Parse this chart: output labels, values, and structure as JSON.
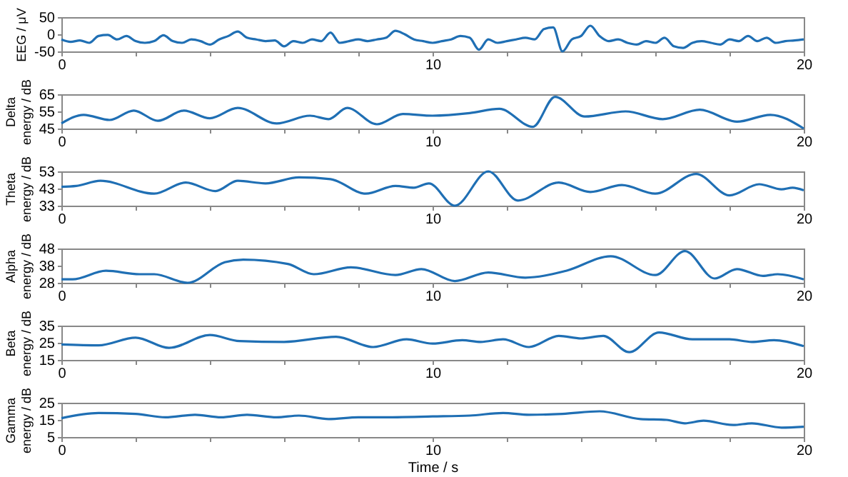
{
  "chart_data": [
    {
      "type": "line",
      "ylabel": "EEG / μV",
      "xlim": [
        0,
        20
      ],
      "xticks": [
        0,
        {
          "value": 2,
          "label": null
        },
        {
          "value": 4,
          "label": null
        },
        {
          "value": 6,
          "label": null
        },
        {
          "value": 8,
          "label": null
        },
        10,
        {
          "value": 12,
          "label": null
        },
        {
          "value": 14,
          "label": null
        },
        {
          "value": 16,
          "label": null
        },
        {
          "value": 18,
          "label": null
        },
        20
      ],
      "ylim": [
        -50,
        50
      ],
      "yticks": [
        -50,
        0,
        50
      ],
      "x": [
        0,
        0.25,
        0.5,
        0.75,
        1,
        1.25,
        1.5,
        1.75,
        2,
        2.25,
        2.5,
        2.75,
        3,
        3.25,
        3.5,
        3.75,
        4,
        4.25,
        4.5,
        4.75,
        5,
        5.25,
        5.5,
        5.75,
        6,
        6.25,
        6.5,
        6.75,
        7,
        7.25,
        7.5,
        7.75,
        8,
        8.25,
        8.5,
        8.75,
        9,
        9.25,
        9.5,
        9.75,
        10,
        10.25,
        10.5,
        10.75,
        11,
        11.25,
        11.5,
        11.75,
        12,
        12.25,
        12.5,
        12.75,
        13,
        13.25,
        13.5,
        13.75,
        14,
        14.25,
        14.5,
        14.75,
        15,
        15.25,
        15.5,
        15.75,
        16,
        16.25,
        16.5,
        16.75,
        17,
        17.25,
        17.5,
        17.75,
        18,
        18.25,
        18.5,
        18.75,
        19,
        19.25,
        19.5,
        19.75,
        20
      ],
      "series": [
        {
          "color": "#1f6fb4",
          "values": [
            -15,
            -22,
            -18,
            -25,
            -5,
            -2,
            -15,
            -5,
            -20,
            -25,
            -20,
            -3,
            -20,
            -25,
            -15,
            -20,
            -30,
            -15,
            -5,
            8,
            -10,
            -15,
            -20,
            -18,
            -35,
            -20,
            -25,
            -15,
            -20,
            5,
            -25,
            -20,
            -15,
            -20,
            -15,
            -10,
            10,
            0,
            -15,
            -20,
            -25,
            -20,
            -15,
            -5,
            -10,
            -45,
            -15,
            -25,
            -20,
            -15,
            -10,
            -15,
            15,
            20,
            -50,
            -15,
            -5,
            25,
            -5,
            -20,
            -15,
            -25,
            -30,
            -20,
            -25,
            -10,
            -35,
            -40,
            -25,
            -20,
            -25,
            -30,
            -15,
            -20,
            -5,
            -20,
            -10,
            -25,
            -20,
            -18,
            -15
          ]
        }
      ]
    },
    {
      "type": "line",
      "ylabel": "Delta\nenergy / dB",
      "xlim": [
        0,
        20
      ],
      "xticks": [
        0,
        {
          "value": 2,
          "label": null
        },
        {
          "value": 4,
          "label": null
        },
        {
          "value": 6,
          "label": null
        },
        {
          "value": 8,
          "label": null
        },
        10,
        {
          "value": 12,
          "label": null
        },
        {
          "value": 14,
          "label": null
        },
        {
          "value": 16,
          "label": null
        },
        {
          "value": 18,
          "label": null
        },
        20
      ],
      "ylim": [
        45,
        65
      ],
      "yticks": [
        45,
        55,
        65
      ],
      "x": [
        0,
        0.6,
        1.3,
        1.95,
        2.6,
        3.3,
        4.0,
        4.75,
        5.8,
        6.7,
        7.2,
        7.7,
        8.5,
        9.2,
        10.0,
        11.0,
        11.8,
        12.7,
        13.3,
        14.1,
        15.2,
        16.2,
        17.2,
        18.2,
        19.1,
        20
      ],
      "series": [
        {
          "color": "#1f6fb4",
          "values": [
            48,
            53,
            50,
            55.5,
            49.5,
            55.5,
            51,
            57,
            48,
            52.5,
            50.5,
            57,
            47.5,
            53.5,
            52.5,
            54,
            56.5,
            46,
            63.5,
            52,
            55,
            50.5,
            56,
            49,
            53,
            45
          ]
        }
      ]
    },
    {
      "type": "line",
      "ylabel": "Theta\nenergy / dB",
      "xlim": [
        0,
        20
      ],
      "xticks": [
        0,
        {
          "value": 2,
          "label": null
        },
        {
          "value": 4,
          "label": null
        },
        {
          "value": 6,
          "label": null
        },
        {
          "value": 8,
          "label": null
        },
        10,
        {
          "value": 12,
          "label": null
        },
        {
          "value": 14,
          "label": null
        },
        {
          "value": 16,
          "label": null
        },
        {
          "value": 18,
          "label": null
        },
        20
      ],
      "ylim": [
        33,
        53
      ],
      "yticks": [
        33,
        43,
        53
      ],
      "x": [
        0,
        0.4,
        1.05,
        2.5,
        3.35,
        4.15,
        4.75,
        5.5,
        6.4,
        7.25,
        8.2,
        9.0,
        9.5,
        9.9,
        10.6,
        11.5,
        12.3,
        13.4,
        14.25,
        15.1,
        16.0,
        17.1,
        18.0,
        18.8,
        19.4,
        19.7,
        20
      ],
      "series": [
        {
          "color": "#1f6fb4",
          "values": [
            44,
            44.5,
            47.5,
            40,
            46.5,
            41.5,
            47.5,
            46,
            49.5,
            48.5,
            40,
            44.5,
            43.5,
            46,
            33,
            53,
            36,
            46.5,
            41,
            45,
            40,
            51.5,
            39,
            45.5,
            42.5,
            43.5,
            42
          ]
        }
      ]
    },
    {
      "type": "line",
      "ylabel": "Alpha\nenergy / dB",
      "xlim": [
        0,
        20
      ],
      "xticks": [
        0,
        {
          "value": 2,
          "label": null
        },
        {
          "value": 4,
          "label": null
        },
        {
          "value": 6,
          "label": null
        },
        {
          "value": 8,
          "label": null
        },
        10,
        {
          "value": 12,
          "label": null
        },
        {
          "value": 14,
          "label": null
        },
        {
          "value": 16,
          "label": null
        },
        {
          "value": 18,
          "label": null
        },
        20
      ],
      "ylim": [
        28,
        48
      ],
      "yticks": [
        28,
        38,
        48
      ],
      "x": [
        0,
        0.3,
        1.2,
        2.1,
        2.5,
        3.4,
        4.4,
        4.9,
        6.1,
        6.8,
        7.8,
        9.0,
        9.7,
        10.6,
        11.5,
        12.5,
        13.6,
        14.8,
        16.0,
        16.8,
        17.6,
        18.2,
        18.9,
        19.3,
        20
      ],
      "series": [
        {
          "color": "#1f6fb4",
          "values": [
            30,
            30,
            35,
            33,
            33,
            28,
            40,
            41.5,
            39,
            33,
            37,
            32.5,
            36,
            29,
            34,
            31,
            35,
            43.5,
            32.5,
            46.5,
            30.5,
            36,
            32,
            33,
            30
          ]
        }
      ]
    },
    {
      "type": "line",
      "ylabel": "Beta\nenergy / dB",
      "xlim": [
        0,
        20
      ],
      "xticks": [
        0,
        {
          "value": 2,
          "label": null
        },
        {
          "value": 4,
          "label": null
        },
        {
          "value": 6,
          "label": null
        },
        {
          "value": 8,
          "label": null
        },
        10,
        {
          "value": 12,
          "label": null
        },
        {
          "value": 14,
          "label": null
        },
        {
          "value": 16,
          "label": null
        },
        {
          "value": 18,
          "label": null
        },
        20
      ],
      "ylim": [
        15,
        35
      ],
      "yticks": [
        15,
        25,
        35
      ],
      "x": [
        0,
        1.0,
        2.0,
        2.9,
        4.0,
        4.8,
        6.0,
        7.4,
        8.4,
        9.3,
        10.0,
        10.8,
        11.3,
        11.9,
        12.6,
        13.4,
        14.0,
        14.6,
        15.3,
        16.1,
        17.0,
        18.0,
        18.6,
        19.2,
        20
      ],
      "series": [
        {
          "color": "#1f6fb4",
          "values": [
            24,
            23.5,
            28,
            22,
            29.5,
            26,
            25.5,
            28.5,
            22.5,
            27,
            24.5,
            26.5,
            25.5,
            27,
            22.5,
            29,
            27.5,
            29,
            19.5,
            31,
            27,
            27,
            25.5,
            26.5,
            23
          ]
        }
      ]
    },
    {
      "type": "line",
      "ylabel": "Gamma\nenergy / dB",
      "xlabel": "Time / s",
      "xlim": [
        0,
        20
      ],
      "xticks": [
        0,
        {
          "value": 2,
          "label": null
        },
        {
          "value": 4,
          "label": null
        },
        {
          "value": 6,
          "label": null
        },
        {
          "value": 8,
          "label": null
        },
        10,
        {
          "value": 12,
          "label": null
        },
        {
          "value": 14,
          "label": null
        },
        {
          "value": 16,
          "label": null
        },
        {
          "value": 18,
          "label": null
        },
        20
      ],
      "ylim": [
        5,
        25
      ],
      "yticks": [
        5,
        15,
        25
      ],
      "x": [
        0,
        1.0,
        2.0,
        2.8,
        3.6,
        4.3,
        5.0,
        5.8,
        6.4,
        7.2,
        8.0,
        8.6,
        10.0,
        11.0,
        11.9,
        12.6,
        13.5,
        14.5,
        15.6,
        16.3,
        16.8,
        17.3,
        18.1,
        18.6,
        19.4,
        20
      ],
      "series": [
        {
          "color": "#1f6fb4",
          "values": [
            16,
            19,
            18.5,
            16.5,
            18,
            16.5,
            18,
            16.5,
            17.5,
            15.5,
            16.5,
            16.5,
            17,
            17.5,
            19,
            18,
            18.5,
            20,
            15.5,
            15,
            13,
            14.5,
            12,
            13,
            10.5,
            11
          ]
        }
      ]
    }
  ]
}
